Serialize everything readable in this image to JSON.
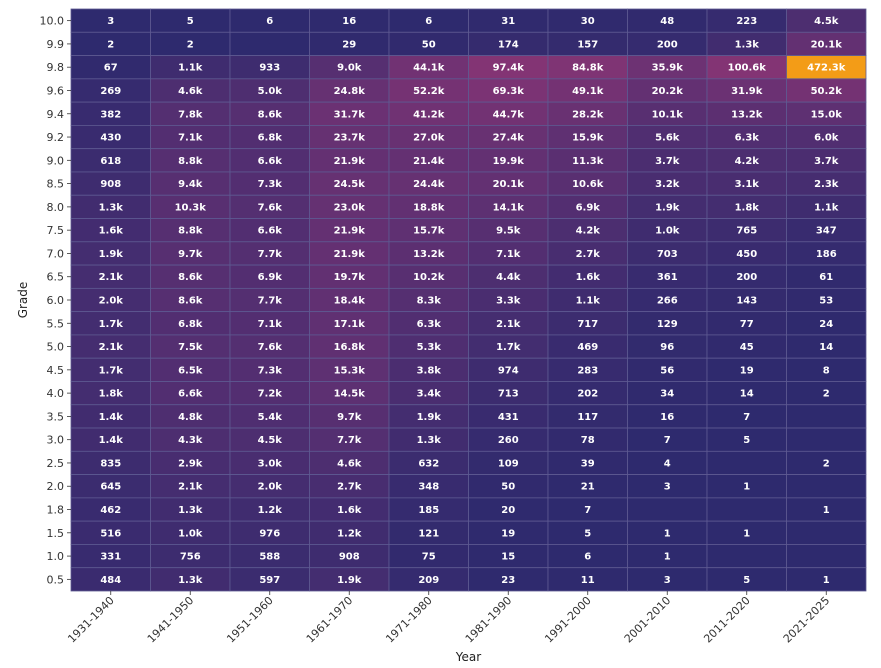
{
  "chart_data": {
    "type": "heatmap",
    "xlabel": "Year",
    "ylabel": "Grade",
    "x_categories": [
      "1931-1940",
      "1941-1950",
      "1951-1960",
      "1961-1970",
      "1971-1980",
      "1981-1990",
      "1991-2000",
      "2001-2010",
      "2011-2020",
      "2021-2025"
    ],
    "y_categories": [
      "10.0",
      "9.9",
      "9.8",
      "9.6",
      "9.4",
      "9.2",
      "9.0",
      "8.5",
      "8.0",
      "7.5",
      "7.0",
      "6.5",
      "6.0",
      "5.5",
      "5.0",
      "4.5",
      "4.0",
      "3.5",
      "3.0",
      "2.5",
      "2.0",
      "1.8",
      "1.5",
      "1.0",
      "0.5"
    ],
    "values": [
      [
        3,
        5,
        6,
        16,
        6,
        31,
        30,
        48,
        223,
        4500
      ],
      [
        2,
        2,
        0,
        29,
        50,
        174,
        157,
        200,
        1300,
        20100
      ],
      [
        67,
        1100,
        933,
        9000,
        44100,
        97400,
        84800,
        35900,
        100600,
        472300
      ],
      [
        269,
        4600,
        5000,
        24800,
        52200,
        69300,
        49100,
        20200,
        31900,
        50200
      ],
      [
        382,
        7800,
        8600,
        31700,
        41200,
        44700,
        28200,
        10100,
        13200,
        15000
      ],
      [
        430,
        7100,
        6800,
        23700,
        27000,
        27400,
        15900,
        5600,
        6300,
        6000
      ],
      [
        618,
        8800,
        6600,
        21900,
        21400,
        19900,
        11300,
        3700,
        4200,
        3700
      ],
      [
        908,
        9400,
        7300,
        24500,
        24400,
        20100,
        10600,
        3200,
        3100,
        2300
      ],
      [
        1300,
        10300,
        7600,
        23000,
        18800,
        14100,
        6900,
        1900,
        1800,
        1100
      ],
      [
        1600,
        8800,
        6600,
        21900,
        15700,
        9500,
        4200,
        1000,
        765,
        347
      ],
      [
        1900,
        9700,
        7700,
        21900,
        13200,
        7100,
        2700,
        703,
        450,
        186
      ],
      [
        2100,
        8600,
        6900,
        19700,
        10200,
        4400,
        1600,
        361,
        200,
        61
      ],
      [
        2000,
        8600,
        7700,
        18400,
        8300,
        3300,
        1100,
        266,
        143,
        53
      ],
      [
        1700,
        6800,
        7100,
        17100,
        6300,
        2100,
        717,
        129,
        77,
        24
      ],
      [
        2100,
        7500,
        7600,
        16800,
        5300,
        1700,
        469,
        96,
        45,
        14
      ],
      [
        1700,
        6500,
        7300,
        15300,
        3800,
        974,
        283,
        56,
        19,
        8
      ],
      [
        1800,
        6600,
        7200,
        14500,
        3400,
        713,
        202,
        34,
        14,
        2
      ],
      [
        1400,
        4800,
        5400,
        9700,
        1900,
        431,
        117,
        16,
        7,
        0
      ],
      [
        1400,
        4300,
        4500,
        7700,
        1300,
        260,
        78,
        7,
        5,
        0
      ],
      [
        835,
        2900,
        3000,
        4600,
        632,
        109,
        39,
        4,
        0,
        2
      ],
      [
        645,
        2100,
        2000,
        2700,
        348,
        50,
        21,
        3,
        1,
        0
      ],
      [
        462,
        1300,
        1200,
        1600,
        185,
        20,
        7,
        0,
        0,
        1
      ],
      [
        516,
        1000,
        976,
        1200,
        121,
        19,
        5,
        1,
        1,
        0
      ],
      [
        331,
        756,
        588,
        908,
        75,
        15,
        6,
        1,
        0,
        0
      ],
      [
        484,
        1300,
        597,
        1900,
        209,
        23,
        11,
        3,
        5,
        1
      ]
    ],
    "labels": [
      [
        "3",
        "5",
        "6",
        "16",
        "6",
        "31",
        "30",
        "48",
        "223",
        "4.5k"
      ],
      [
        "2",
        "2",
        "",
        "29",
        "50",
        "174",
        "157",
        "200",
        "1.3k",
        "20.1k"
      ],
      [
        "67",
        "1.1k",
        "933",
        "9.0k",
        "44.1k",
        "97.4k",
        "84.8k",
        "35.9k",
        "100.6k",
        "472.3k"
      ],
      [
        "269",
        "4.6k",
        "5.0k",
        "24.8k",
        "52.2k",
        "69.3k",
        "49.1k",
        "20.2k",
        "31.9k",
        "50.2k"
      ],
      [
        "382",
        "7.8k",
        "8.6k",
        "31.7k",
        "41.2k",
        "44.7k",
        "28.2k",
        "10.1k",
        "13.2k",
        "15.0k"
      ],
      [
        "430",
        "7.1k",
        "6.8k",
        "23.7k",
        "27.0k",
        "27.4k",
        "15.9k",
        "5.6k",
        "6.3k",
        "6.0k"
      ],
      [
        "618",
        "8.8k",
        "6.6k",
        "21.9k",
        "21.4k",
        "19.9k",
        "11.3k",
        "3.7k",
        "4.2k",
        "3.7k"
      ],
      [
        "908",
        "9.4k",
        "7.3k",
        "24.5k",
        "24.4k",
        "20.1k",
        "10.6k",
        "3.2k",
        "3.1k",
        "2.3k"
      ],
      [
        "1.3k",
        "10.3k",
        "7.6k",
        "23.0k",
        "18.8k",
        "14.1k",
        "6.9k",
        "1.9k",
        "1.8k",
        "1.1k"
      ],
      [
        "1.6k",
        "8.8k",
        "6.6k",
        "21.9k",
        "15.7k",
        "9.5k",
        "4.2k",
        "1.0k",
        "765",
        "347"
      ],
      [
        "1.9k",
        "9.7k",
        "7.7k",
        "21.9k",
        "13.2k",
        "7.1k",
        "2.7k",
        "703",
        "450",
        "186"
      ],
      [
        "2.1k",
        "8.6k",
        "6.9k",
        "19.7k",
        "10.2k",
        "4.4k",
        "1.6k",
        "361",
        "200",
        "61"
      ],
      [
        "2.0k",
        "8.6k",
        "7.7k",
        "18.4k",
        "8.3k",
        "3.3k",
        "1.1k",
        "266",
        "143",
        "53"
      ],
      [
        "1.7k",
        "6.8k",
        "7.1k",
        "17.1k",
        "6.3k",
        "2.1k",
        "717",
        "129",
        "77",
        "24"
      ],
      [
        "2.1k",
        "7.5k",
        "7.6k",
        "16.8k",
        "5.3k",
        "1.7k",
        "469",
        "96",
        "45",
        "14"
      ],
      [
        "1.7k",
        "6.5k",
        "7.3k",
        "15.3k",
        "3.8k",
        "974",
        "283",
        "56",
        "19",
        "8"
      ],
      [
        "1.8k",
        "6.6k",
        "7.2k",
        "14.5k",
        "3.4k",
        "713",
        "202",
        "34",
        "14",
        "2"
      ],
      [
        "1.4k",
        "4.8k",
        "5.4k",
        "9.7k",
        "1.9k",
        "431",
        "117",
        "16",
        "7",
        ""
      ],
      [
        "1.4k",
        "4.3k",
        "4.5k",
        "7.7k",
        "1.3k",
        "260",
        "78",
        "7",
        "5",
        ""
      ],
      [
        "835",
        "2.9k",
        "3.0k",
        "4.6k",
        "632",
        "109",
        "39",
        "4",
        "",
        "2"
      ],
      [
        "645",
        "2.1k",
        "2.0k",
        "2.7k",
        "348",
        "50",
        "21",
        "3",
        "1",
        ""
      ],
      [
        "462",
        "1.3k",
        "1.2k",
        "1.6k",
        "185",
        "20",
        "7",
        "",
        "",
        "1"
      ],
      [
        "516",
        "1.0k",
        "976",
        "1.2k",
        "121",
        "19",
        "5",
        "1",
        "1",
        ""
      ],
      [
        "331",
        "756",
        "588",
        "908",
        "75",
        "15",
        "6",
        "1",
        "",
        ""
      ],
      [
        "484",
        "1.3k",
        "597",
        "1.9k",
        "209",
        "23",
        "11",
        "3",
        "5",
        "1"
      ]
    ],
    "colors": {
      "low": "#2e2a6e",
      "mid": "#8a3575",
      "high": "#f39c17",
      "grid": "#5e5a92",
      "text": "#ffffff"
    },
    "grid": true,
    "legend": "none"
  }
}
